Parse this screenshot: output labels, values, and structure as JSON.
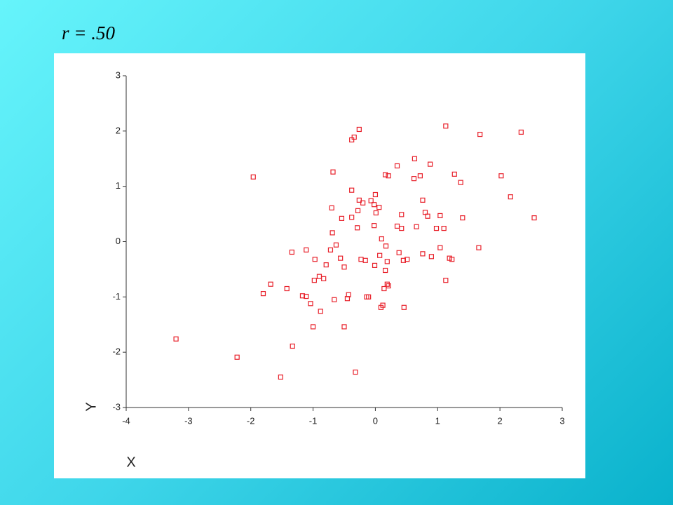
{
  "chart_data": {
    "type": "scatter",
    "title": "r = .50",
    "xlabel": "X",
    "ylabel": "Y",
    "color": "#e8202a",
    "x": [
      -3.2,
      -2.22,
      -1.96,
      -1.8,
      -1.68,
      -1.52,
      -1.42,
      -1.34,
      -1.33,
      -1.17,
      -1.11,
      -1.11,
      -1.04,
      -1.0,
      -0.98,
      -0.97,
      -0.9,
      -0.88,
      -0.83,
      -0.79,
      -0.72,
      -0.7,
      -0.69,
      -0.68,
      -0.66,
      -0.63,
      -0.56,
      -0.54,
      -0.5,
      -0.5,
      -0.45,
      -0.43,
      -0.38,
      -0.38,
      -0.38,
      -0.34,
      -0.32,
      -0.29,
      -0.28,
      -0.26,
      -0.26,
      -0.23,
      -0.2,
      -0.16,
      -0.14,
      -0.11,
      -0.07,
      -0.02,
      -0.02,
      -0.01,
      0.0,
      0.01,
      0.06,
      0.07,
      0.09,
      0.1,
      0.12,
      0.14,
      0.16,
      0.16,
      0.17,
      0.19,
      0.19,
      0.21,
      0.21,
      0.35,
      0.35,
      0.38,
      0.42,
      0.42,
      0.45,
      0.46,
      0.51,
      0.62,
      0.63,
      0.66,
      0.72,
      0.76,
      0.76,
      0.8,
      0.84,
      0.88,
      0.9,
      0.98,
      1.04,
      1.04,
      1.1,
      1.13,
      1.13,
      1.19,
      1.23,
      1.27,
      1.37,
      1.4,
      1.66,
      1.68,
      2.02,
      2.17,
      2.34,
      2.55
    ],
    "values": [
      -1.76,
      -2.09,
      1.17,
      -0.94,
      -0.77,
      -2.45,
      -0.85,
      -0.19,
      -1.89,
      -0.98,
      -0.15,
      -0.99,
      -1.12,
      -1.54,
      -0.7,
      -0.32,
      -0.63,
      -1.26,
      -0.67,
      -0.42,
      -0.15,
      0.61,
      0.16,
      1.26,
      -1.05,
      -0.06,
      -0.3,
      0.42,
      -0.46,
      -1.54,
      -1.03,
      -0.96,
      0.93,
      1.84,
      0.44,
      1.89,
      -2.36,
      0.25,
      0.56,
      2.03,
      0.75,
      -0.32,
      0.7,
      -0.34,
      -1.0,
      -1.0,
      0.74,
      0.67,
      0.29,
      -0.43,
      0.85,
      0.52,
      0.62,
      -0.25,
      -1.19,
      0.05,
      -1.15,
      -0.85,
      -0.52,
      1.21,
      -0.08,
      -0.36,
      -0.77,
      1.19,
      -0.8,
      1.37,
      0.28,
      -0.2,
      0.49,
      0.24,
      -0.34,
      -1.19,
      -0.32,
      1.14,
      1.5,
      0.27,
      1.19,
      0.75,
      -0.22,
      0.53,
      0.46,
      1.4,
      -0.27,
      0.24,
      0.47,
      -0.11,
      0.24,
      -0.7,
      2.09,
      -0.3,
      -0.32,
      1.22,
      1.07,
      0.43,
      -0.11,
      1.94,
      1.19,
      0.81,
      1.98,
      0.43
    ],
    "xlim": [
      -4,
      3
    ],
    "ylim": [
      -3,
      3
    ],
    "xticks": [
      -4,
      -3,
      -2,
      -1,
      0,
      1,
      2,
      3
    ],
    "yticks": [
      -3,
      -2,
      -1,
      0,
      1,
      2,
      3
    ]
  }
}
